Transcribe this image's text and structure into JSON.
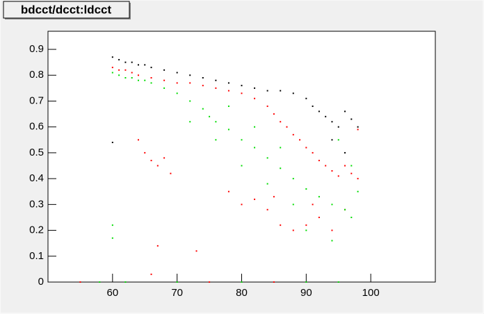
{
  "chart_data": {
    "type": "scatter",
    "title": "bdcct/dcct:ldcct",
    "xlim": [
      50,
      110
    ],
    "xticks": [
      60,
      70,
      80,
      90,
      100
    ],
    "ylim": [
      0,
      0.97
    ],
    "yticks": [
      0,
      0.1,
      0.2,
      0.3,
      0.4,
      0.5,
      0.6,
      0.7,
      0.8,
      0.9
    ],
    "series": [
      {
        "color": "#000000",
        "x": [
          60,
          61,
          62,
          63,
          64,
          65,
          66,
          68,
          70,
          72,
          74,
          76,
          78,
          80,
          82,
          84,
          86,
          88,
          90,
          91,
          92,
          93,
          94,
          95,
          96,
          97,
          94,
          96,
          98,
          60
        ],
        "values": [
          0.87,
          0.86,
          0.85,
          0.85,
          0.84,
          0.84,
          0.83,
          0.82,
          0.81,
          0.8,
          0.79,
          0.78,
          0.77,
          0.76,
          0.75,
          0.74,
          0.74,
          0.73,
          0.71,
          0.68,
          0.66,
          0.64,
          0.62,
          0.6,
          0.66,
          0.63,
          0.55,
          0.5,
          0.6,
          0.54
        ]
      },
      {
        "color": "#ff0000",
        "x": [
          60,
          61,
          62,
          63,
          64,
          66,
          68,
          70,
          72,
          74,
          76,
          78,
          80,
          82,
          84,
          85,
          86,
          87,
          88,
          89,
          90,
          91,
          92,
          93,
          94,
          95,
          96,
          97,
          98,
          98,
          65,
          66,
          67,
          68,
          69,
          64,
          78,
          80,
          82,
          84,
          86,
          88,
          90,
          92,
          94,
          96,
          91,
          85,
          67,
          66,
          73,
          55,
          75,
          85
        ],
        "values": [
          0.83,
          0.82,
          0.82,
          0.81,
          0.8,
          0.79,
          0.78,
          0.77,
          0.77,
          0.76,
          0.75,
          0.74,
          0.73,
          0.71,
          0.68,
          0.65,
          0.62,
          0.6,
          0.57,
          0.55,
          0.52,
          0.5,
          0.47,
          0.45,
          0.43,
          0.41,
          0.45,
          0.42,
          0.4,
          0.59,
          0.5,
          0.47,
          0.45,
          0.48,
          0.42,
          0.55,
          0.35,
          0.3,
          0.32,
          0.28,
          0.22,
          0.2,
          0.22,
          0.25,
          0.2,
          0.28,
          0.3,
          0.33,
          0.14,
          0.03,
          0.12,
          0,
          0,
          0
        ]
      },
      {
        "color": "#00dd00",
        "x": [
          60,
          61,
          62,
          63,
          64,
          65,
          66,
          68,
          70,
          72,
          74,
          75,
          76,
          78,
          80,
          82,
          84,
          86,
          88,
          90,
          92,
          94,
          96,
          97,
          98,
          72,
          76,
          80,
          84,
          88,
          90,
          94,
          86,
          82,
          78,
          60,
          60,
          95,
          97,
          58,
          62,
          70,
          80,
          90,
          95
        ],
        "values": [
          0.81,
          0.8,
          0.79,
          0.79,
          0.78,
          0.78,
          0.77,
          0.75,
          0.73,
          0.7,
          0.67,
          0.64,
          0.62,
          0.59,
          0.55,
          0.52,
          0.48,
          0.44,
          0.4,
          0.36,
          0.33,
          0.3,
          0.28,
          0.25,
          0.35,
          0.62,
          0.55,
          0.45,
          0.38,
          0.3,
          0.2,
          0.16,
          0.52,
          0.6,
          0.68,
          0.22,
          0.17,
          0.55,
          0.45,
          0,
          0,
          0,
          0,
          0,
          0
        ]
      }
    ]
  }
}
